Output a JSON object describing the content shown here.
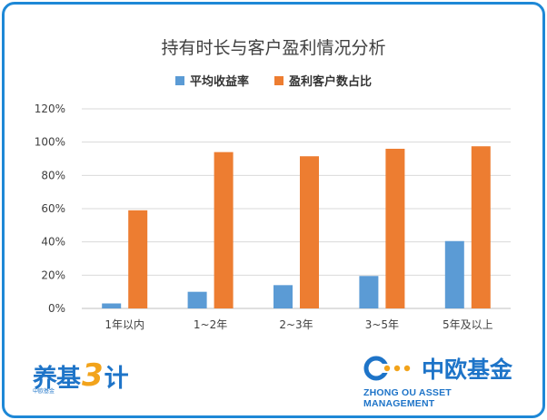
{
  "chart_data": {
    "type": "bar",
    "title": "持有时长与客户盈利情况分析",
    "categories": [
      "1年以内",
      "1~2年",
      "2~3年",
      "3~5年",
      "5年及以上"
    ],
    "series": [
      {
        "name": "平均收益率",
        "color": "#5b9bd5",
        "values": [
          3,
          10,
          14,
          19.5,
          40.5
        ]
      },
      {
        "name": "盈利客户数占比",
        "color": "#ed7d31",
        "values": [
          59,
          94,
          91.5,
          96,
          97.5
        ]
      }
    ],
    "ylim": [
      0,
      120
    ],
    "yticks": [
      "0%",
      "20%",
      "40%",
      "60%",
      "80%",
      "100%",
      "120%"
    ],
    "grid": true,
    "legend": "top"
  },
  "branding": {
    "left_logo": {
      "text1": "养基",
      "num": "3",
      "text2": "计",
      "small": "中欧基金"
    },
    "right_logo": {
      "name": "中欧基金",
      "english": "ZHONG OU ASSET MANAGEMENT",
      "icon": "zhongou-dots-icon"
    }
  }
}
